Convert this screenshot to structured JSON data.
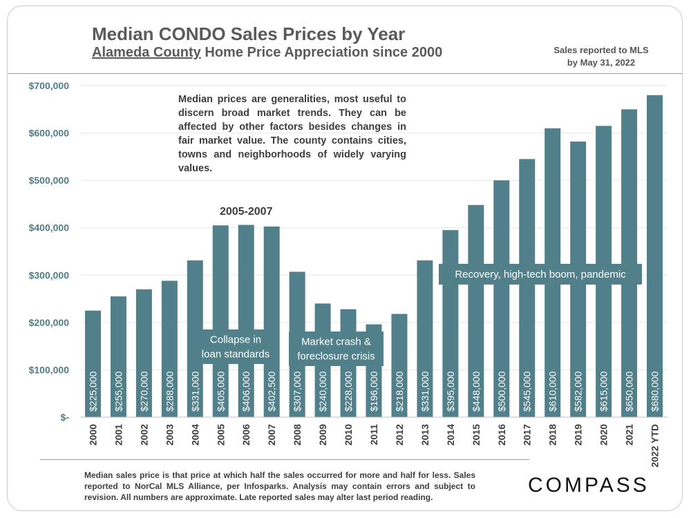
{
  "header": {
    "title": "Median CONDO Sales Prices by Year",
    "subtitle_underlined": "Alameda County",
    "subtitle_rest": " Home Price Appreciation since 2000",
    "sales_note_line1": "Sales reported to MLS",
    "sales_note_line2": "by May 31, 2022"
  },
  "notice": "Median prices are generalities, most useful to discern broad market trends. They can be affected by other factors besides changes in fair market value. The county contains cities, towns and neighborhoods of widely varying values.",
  "footnote": "Median sales price is that price at which half the sales occurred for more and half for less. Sales reported to NorCal MLS Alliance, per Infosparks. Analysis may contain errors and subject to revision. All numbers are approximate. Late reported sales may alter last period reading.",
  "logo": "COMPASS",
  "colors": {
    "bar": "#51808a",
    "bar_label": "#ffffff",
    "axis_label": "#4f7c86",
    "callout_bg": "#51808a",
    "callout_text": "#ffffff",
    "annotation_text": "#3d3d3d"
  },
  "chart_data": {
    "type": "bar",
    "title": "Median CONDO Sales Prices by Year",
    "xlabel": "",
    "ylabel": "",
    "ylim": [
      0,
      700000
    ],
    "yticks": [
      0,
      100000,
      200000,
      300000,
      400000,
      500000,
      600000,
      700000
    ],
    "ytick_labels": [
      "$-",
      "$100,000",
      "$200,000",
      "$300,000",
      "$400,000",
      "$500,000",
      "$600,000",
      "$700,000"
    ],
    "categories": [
      "2000",
      "2001",
      "2002",
      "2003",
      "2004",
      "2005",
      "2006",
      "2007",
      "2008",
      "2009",
      "2010",
      "2011",
      "2012",
      "2013",
      "2014",
      "2015",
      "2016",
      "2017",
      "2018",
      "2019",
      "2020",
      "2021",
      "2022 YTD"
    ],
    "values": [
      225000,
      255000,
      270000,
      288000,
      331000,
      405000,
      406000,
      402500,
      307000,
      240000,
      228000,
      196000,
      218000,
      331000,
      395000,
      448000,
      500000,
      545000,
      610000,
      582000,
      615000,
      650000,
      680000
    ],
    "data_labels": [
      "$225,000",
      "$255,000",
      "$270,000",
      "$288,000",
      "$331,000",
      "$405,000",
      "$406,000",
      "$402,500",
      "$307,000",
      "$240,000",
      "$228,000",
      "$196,000",
      "$218,000",
      "$331,000",
      "$395,000",
      "$448,000",
      "$500,000",
      "$545,000",
      "$610,000",
      "$582,000",
      "$615,000",
      "$650,000",
      "$680,000"
    ],
    "annotations": {
      "period_label": "2005-2007",
      "callouts": [
        {
          "id": "collapse",
          "lines": [
            "Collapse in",
            "loan standards"
          ]
        },
        {
          "id": "crash",
          "lines": [
            "Market crash &",
            "foreclosure crisis"
          ]
        },
        {
          "id": "recovery",
          "lines": [
            "Recovery, high-tech boom, pandemic"
          ]
        }
      ]
    }
  }
}
